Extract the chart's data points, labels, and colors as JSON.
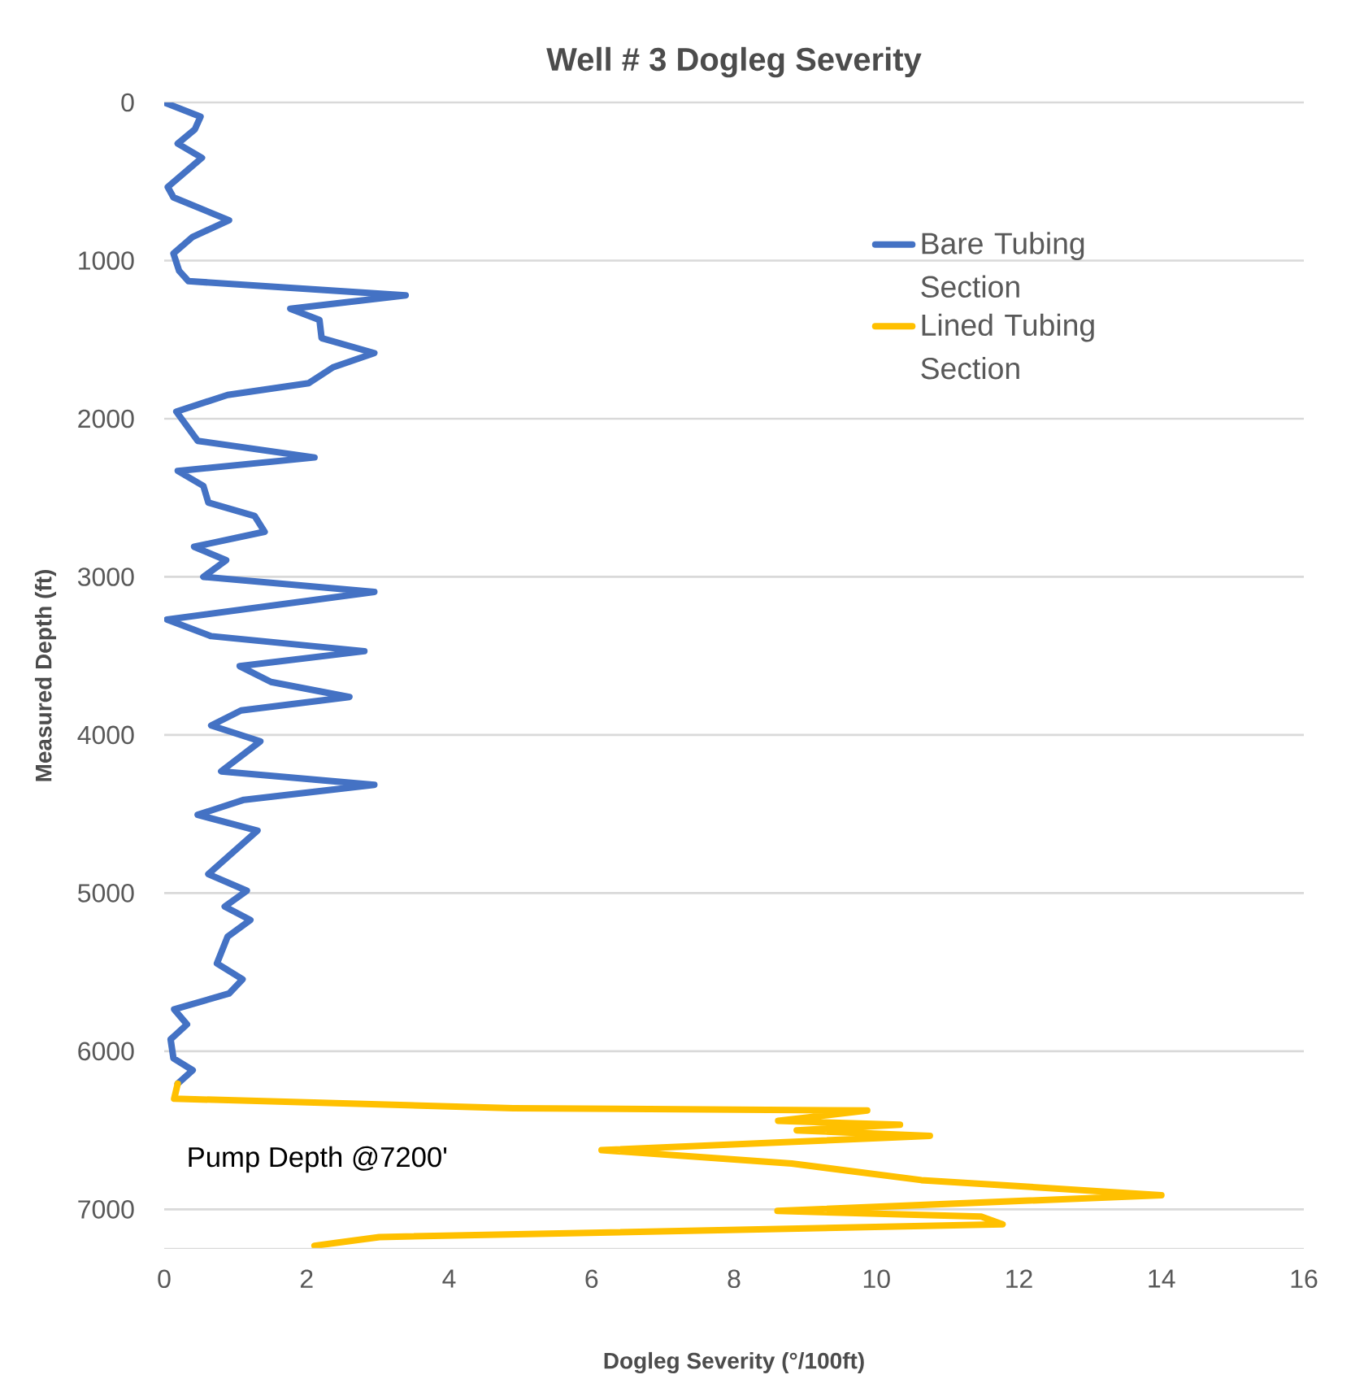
{
  "chart_data": {
    "type": "line",
    "title": "Well # 3 Dogleg Severity",
    "xlabel": "Dogleg Severity (°/100ft)",
    "ylabel": "Measured Depth (ft)",
    "xlim": [
      0,
      16
    ],
    "xticks": [
      0,
      2,
      4,
      6,
      8,
      10,
      12,
      14,
      16
    ],
    "ylim": [
      7250,
      0
    ],
    "yticks": [
      0,
      1000,
      2000,
      3000,
      4000,
      5000,
      6000,
      7000
    ],
    "grid": "y",
    "legend": "top right",
    "marker": "none",
    "line_style": "solid",
    "annotations": [
      "Pump Depth @7200'"
    ],
    "series": [
      {
        "name": "Bare Tubing Section",
        "color": "#4472c4",
        "x": [
          0.0,
          0.51,
          0.43,
          0.19,
          0.53,
          0.05,
          0.13,
          0.91,
          0.4,
          0.13,
          0.21,
          0.34,
          3.39,
          1.77,
          2.18,
          2.21,
          2.95,
          2.37,
          2.03,
          0.89,
          0.17,
          0.47,
          2.11,
          0.19,
          0.55,
          0.62,
          1.27,
          1.41,
          0.42,
          0.87,
          0.55,
          2.95,
          0.04,
          0.66,
          2.81,
          1.06,
          1.5,
          2.6,
          1.08,
          0.66,
          1.35,
          0.8,
          2.95,
          1.12,
          0.47,
          1.31,
          0.62,
          1.16,
          0.85,
          1.21,
          0.89,
          0.74,
          1.1,
          0.91,
          0.14,
          0.32,
          0.09,
          0.13,
          0.4,
          0.19
        ],
        "values": [
          0,
          90,
          170,
          260,
          350,
          535,
          600,
          745,
          850,
          955,
          1065,
          1130,
          1220,
          1305,
          1375,
          1490,
          1585,
          1675,
          1775,
          1850,
          1955,
          2140,
          2245,
          2330,
          2425,
          2530,
          2615,
          2715,
          2810,
          2895,
          3000,
          3095,
          3270,
          3375,
          3470,
          3565,
          3665,
          3760,
          3845,
          3940,
          4040,
          4230,
          4315,
          4410,
          4505,
          4605,
          4880,
          4985,
          5085,
          5170,
          5275,
          5445,
          5545,
          5635,
          5735,
          5830,
          5925,
          6045,
          6120,
          6205
        ]
      },
      {
        "name": "Lined Tubing Section",
        "color": "#ffc000",
        "x": [
          0.19,
          0.14,
          4.9,
          9.87,
          8.62,
          10.33,
          8.88,
          10.75,
          6.14,
          8.81,
          10.63,
          14.0,
          8.61,
          11.47,
          11.77,
          3.02,
          2.11
        ],
        "values": [
          6205,
          6300,
          6360,
          6375,
          6440,
          6465,
          6500,
          6535,
          6625,
          6710,
          6815,
          6910,
          7010,
          7045,
          7095,
          7175,
          7230
        ]
      }
    ]
  }
}
